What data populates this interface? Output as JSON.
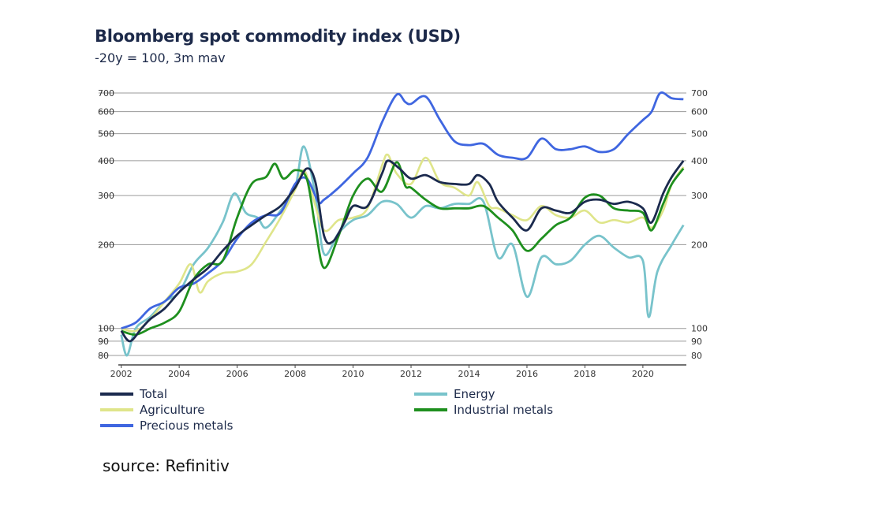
{
  "header": {
    "title": "Bloomberg spot commodity index (USD)",
    "subtitle": "-20y = 100, 3m mav"
  },
  "source": "source: Refinitiv",
  "colors": {
    "total": "#1b2a4e",
    "agriculture": "#dfe58a",
    "precious": "#3f66e0",
    "energy": "#78c3cb",
    "industrial": "#1e8f1e",
    "grid": "#9a9a9a"
  },
  "chart_data": {
    "type": "line",
    "title": "Bloomberg spot commodity index (USD)",
    "subtitle": "-20y = 100, 3m mav",
    "xlabel": "",
    "ylabel": "",
    "y_scale": "log",
    "ylim": [
      75,
      720
    ],
    "xlim": [
      2001.9,
      2021.5
    ],
    "grid": true,
    "legend_position": "bottom",
    "y_ticks": [
      80,
      90,
      100,
      200,
      300,
      400,
      500,
      600,
      700
    ],
    "x_ticks": [
      "2002",
      "2004",
      "2006",
      "2008",
      "2010",
      "2012",
      "2014",
      "2016",
      "2018",
      "2020"
    ],
    "series": [
      {
        "key": "total",
        "name": "Total",
        "color": "#1b2a4e",
        "points": [
          [
            2002.0,
            98
          ],
          [
            2002.3,
            90
          ],
          [
            2002.7,
            100
          ],
          [
            2003.0,
            108
          ],
          [
            2003.5,
            118
          ],
          [
            2004.0,
            135
          ],
          [
            2004.5,
            150
          ],
          [
            2005.0,
            165
          ],
          [
            2005.5,
            190
          ],
          [
            2006.0,
            215
          ],
          [
            2006.5,
            235
          ],
          [
            2007.0,
            255
          ],
          [
            2007.5,
            275
          ],
          [
            2008.0,
            320
          ],
          [
            2008.4,
            375
          ],
          [
            2008.7,
            335
          ],
          [
            2009.0,
            215
          ],
          [
            2009.3,
            205
          ],
          [
            2009.7,
            240
          ],
          [
            2010.0,
            275
          ],
          [
            2010.5,
            275
          ],
          [
            2011.0,
            360
          ],
          [
            2011.2,
            400
          ],
          [
            2011.6,
            375
          ],
          [
            2012.0,
            345
          ],
          [
            2012.5,
            355
          ],
          [
            2013.0,
            335
          ],
          [
            2013.5,
            330
          ],
          [
            2014.0,
            330
          ],
          [
            2014.3,
            355
          ],
          [
            2014.7,
            330
          ],
          [
            2015.0,
            285
          ],
          [
            2015.5,
            250
          ],
          [
            2016.0,
            225
          ],
          [
            2016.5,
            270
          ],
          [
            2017.0,
            265
          ],
          [
            2017.5,
            260
          ],
          [
            2018.0,
            285
          ],
          [
            2018.5,
            290
          ],
          [
            2019.0,
            280
          ],
          [
            2019.5,
            285
          ],
          [
            2020.0,
            270
          ],
          [
            2020.3,
            240
          ],
          [
            2020.7,
            305
          ],
          [
            2021.0,
            350
          ],
          [
            2021.4,
            400
          ]
        ]
      },
      {
        "key": "agriculture",
        "name": "Agriculture",
        "color": "#dfe58a",
        "points": [
          [
            2002.0,
            100
          ],
          [
            2002.5,
            98
          ],
          [
            2003.0,
            108
          ],
          [
            2003.5,
            125
          ],
          [
            2004.0,
            145
          ],
          [
            2004.4,
            170
          ],
          [
            2004.7,
            135
          ],
          [
            2005.0,
            148
          ],
          [
            2005.5,
            158
          ],
          [
            2006.0,
            160
          ],
          [
            2006.5,
            170
          ],
          [
            2007.0,
            205
          ],
          [
            2007.5,
            250
          ],
          [
            2008.0,
            315
          ],
          [
            2008.3,
            370
          ],
          [
            2008.6,
            300
          ],
          [
            2009.0,
            225
          ],
          [
            2009.5,
            245
          ],
          [
            2010.0,
            250
          ],
          [
            2010.5,
            270
          ],
          [
            2011.0,
            385
          ],
          [
            2011.2,
            420
          ],
          [
            2011.5,
            360
          ],
          [
            2012.0,
            330
          ],
          [
            2012.5,
            410
          ],
          [
            2013.0,
            335
          ],
          [
            2013.5,
            320
          ],
          [
            2014.0,
            300
          ],
          [
            2014.3,
            335
          ],
          [
            2014.7,
            275
          ],
          [
            2015.0,
            270
          ],
          [
            2015.5,
            255
          ],
          [
            2016.0,
            245
          ],
          [
            2016.5,
            275
          ],
          [
            2017.0,
            255
          ],
          [
            2017.5,
            250
          ],
          [
            2018.0,
            265
          ],
          [
            2018.5,
            240
          ],
          [
            2019.0,
            245
          ],
          [
            2019.5,
            240
          ],
          [
            2020.0,
            250
          ],
          [
            2020.3,
            230
          ],
          [
            2020.7,
            265
          ],
          [
            2021.0,
            330
          ],
          [
            2021.4,
            380
          ]
        ]
      },
      {
        "key": "precious",
        "name": "Precious metals",
        "color": "#3f66e0",
        "points": [
          [
            2002.0,
            100
          ],
          [
            2002.5,
            105
          ],
          [
            2003.0,
            118
          ],
          [
            2003.5,
            125
          ],
          [
            2004.0,
            140
          ],
          [
            2004.5,
            145
          ],
          [
            2005.0,
            158
          ],
          [
            2005.5,
            175
          ],
          [
            2006.0,
            210
          ],
          [
            2006.5,
            240
          ],
          [
            2007.0,
            255
          ],
          [
            2007.5,
            260
          ],
          [
            2008.0,
            330
          ],
          [
            2008.4,
            345
          ],
          [
            2008.8,
            285
          ],
          [
            2009.0,
            290
          ],
          [
            2009.5,
            320
          ],
          [
            2010.0,
            360
          ],
          [
            2010.5,
            410
          ],
          [
            2011.0,
            550
          ],
          [
            2011.5,
            690
          ],
          [
            2011.8,
            650
          ],
          [
            2012.0,
            640
          ],
          [
            2012.5,
            680
          ],
          [
            2013.0,
            560
          ],
          [
            2013.5,
            470
          ],
          [
            2014.0,
            455
          ],
          [
            2014.5,
            460
          ],
          [
            2015.0,
            420
          ],
          [
            2015.5,
            410
          ],
          [
            2016.0,
            410
          ],
          [
            2016.5,
            480
          ],
          [
            2017.0,
            440
          ],
          [
            2017.5,
            440
          ],
          [
            2018.0,
            450
          ],
          [
            2018.5,
            430
          ],
          [
            2019.0,
            440
          ],
          [
            2019.5,
            500
          ],
          [
            2020.0,
            560
          ],
          [
            2020.3,
            600
          ],
          [
            2020.6,
            700
          ],
          [
            2021.0,
            670
          ],
          [
            2021.4,
            665
          ]
        ]
      },
      {
        "key": "energy",
        "name": "Energy",
        "color": "#78c3cb",
        "points": [
          [
            2002.0,
            95
          ],
          [
            2002.2,
            80
          ],
          [
            2002.5,
            100
          ],
          [
            2003.0,
            110
          ],
          [
            2003.5,
            125
          ],
          [
            2004.0,
            135
          ],
          [
            2004.5,
            170
          ],
          [
            2005.0,
            195
          ],
          [
            2005.5,
            240
          ],
          [
            2005.9,
            305
          ],
          [
            2006.3,
            260
          ],
          [
            2006.7,
            250
          ],
          [
            2007.0,
            230
          ],
          [
            2007.5,
            265
          ],
          [
            2008.0,
            320
          ],
          [
            2008.3,
            450
          ],
          [
            2008.7,
            300
          ],
          [
            2009.0,
            185
          ],
          [
            2009.5,
            220
          ],
          [
            2010.0,
            245
          ],
          [
            2010.5,
            255
          ],
          [
            2011.0,
            285
          ],
          [
            2011.5,
            280
          ],
          [
            2012.0,
            250
          ],
          [
            2012.5,
            275
          ],
          [
            2013.0,
            270
          ],
          [
            2013.5,
            280
          ],
          [
            2014.0,
            280
          ],
          [
            2014.5,
            285
          ],
          [
            2015.0,
            180
          ],
          [
            2015.5,
            200
          ],
          [
            2016.0,
            130
          ],
          [
            2016.5,
            180
          ],
          [
            2017.0,
            170
          ],
          [
            2017.5,
            175
          ],
          [
            2018.0,
            200
          ],
          [
            2018.5,
            215
          ],
          [
            2019.0,
            195
          ],
          [
            2019.5,
            180
          ],
          [
            2020.0,
            175
          ],
          [
            2020.2,
            110
          ],
          [
            2020.5,
            160
          ],
          [
            2021.0,
            200
          ],
          [
            2021.4,
            235
          ]
        ]
      },
      {
        "key": "industrial",
        "name": "Industrial metals",
        "color": "#1e8f1e",
        "points": [
          [
            2002.0,
            98
          ],
          [
            2002.5,
            95
          ],
          [
            2003.0,
            100
          ],
          [
            2003.5,
            105
          ],
          [
            2004.0,
            115
          ],
          [
            2004.5,
            150
          ],
          [
            2005.0,
            170
          ],
          [
            2005.5,
            175
          ],
          [
            2006.0,
            250
          ],
          [
            2006.5,
            330
          ],
          [
            2007.0,
            350
          ],
          [
            2007.3,
            390
          ],
          [
            2007.6,
            345
          ],
          [
            2008.0,
            370
          ],
          [
            2008.4,
            345
          ],
          [
            2008.7,
            230
          ],
          [
            2009.0,
            165
          ],
          [
            2009.5,
            215
          ],
          [
            2010.0,
            300
          ],
          [
            2010.5,
            345
          ],
          [
            2011.0,
            310
          ],
          [
            2011.5,
            395
          ],
          [
            2011.8,
            325
          ],
          [
            2012.0,
            320
          ],
          [
            2012.5,
            290
          ],
          [
            2013.0,
            270
          ],
          [
            2013.5,
            270
          ],
          [
            2014.0,
            270
          ],
          [
            2014.5,
            275
          ],
          [
            2015.0,
            250
          ],
          [
            2015.5,
            225
          ],
          [
            2016.0,
            190
          ],
          [
            2016.5,
            210
          ],
          [
            2017.0,
            235
          ],
          [
            2017.5,
            250
          ],
          [
            2018.0,
            295
          ],
          [
            2018.5,
            300
          ],
          [
            2019.0,
            270
          ],
          [
            2019.5,
            265
          ],
          [
            2020.0,
            260
          ],
          [
            2020.3,
            225
          ],
          [
            2020.7,
            280
          ],
          [
            2021.0,
            330
          ],
          [
            2021.4,
            375
          ]
        ]
      }
    ]
  }
}
